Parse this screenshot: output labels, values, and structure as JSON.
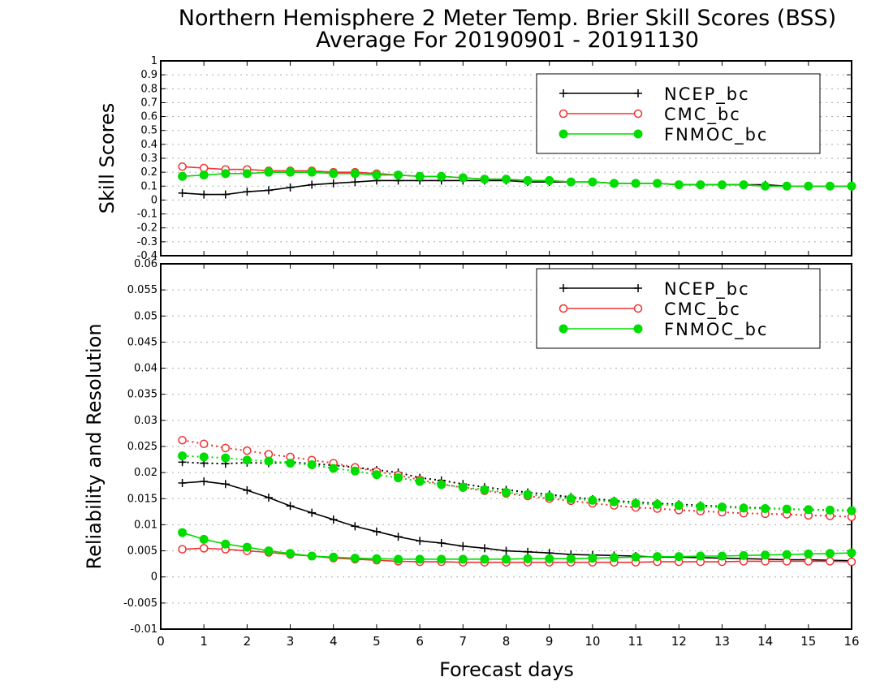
{
  "title_line1": "Northern Hemisphere 2 Meter Temp. Brier Skill Scores (BSS)",
  "title_line2": "Average For 20190901 - 20191130",
  "xlabel": "Forecast days",
  "colors": {
    "NCEP_bc": "#000000",
    "CMC_bc": "#ee3333",
    "FNMOC_bc": "#00dd00"
  },
  "chart_data": [
    {
      "type": "line",
      "ylabel": "Skill Scores",
      "xlim": [
        0,
        16
      ],
      "ylim": [
        -0.4,
        1
      ],
      "xticks": [
        0,
        1,
        2,
        3,
        4,
        5,
        6,
        7,
        8,
        9,
        10,
        11,
        12,
        13,
        14,
        15,
        16
      ],
      "yticks": [
        "-0.4",
        "-0.3",
        "-0.2",
        "-0.1",
        "0",
        "0.1",
        "0.2",
        "0.3",
        "0.4",
        "0.5",
        "0.6",
        "0.7",
        "0.8",
        "0.9",
        "1"
      ],
      "grid": true,
      "legend": "top-right",
      "x": [
        0.5,
        1,
        1.5,
        2,
        2.5,
        3,
        3.5,
        4,
        4.5,
        5,
        5.5,
        6,
        6.5,
        7,
        7.5,
        8,
        8.5,
        9,
        9.5,
        10,
        10.5,
        11,
        11.5,
        12,
        12.5,
        13,
        13.5,
        14,
        14.5,
        15,
        15.5,
        16
      ],
      "series": [
        {
          "name": "NCEP_bc",
          "marker": "plus",
          "style": "solid",
          "values": [
            0.05,
            0.04,
            0.04,
            0.06,
            0.07,
            0.09,
            0.11,
            0.12,
            0.13,
            0.14,
            0.14,
            0.14,
            0.14,
            0.14,
            0.14,
            0.14,
            0.13,
            0.13,
            0.13,
            0.13,
            0.12,
            0.12,
            0.12,
            0.11,
            0.11,
            0.11,
            0.11,
            0.11,
            0.1,
            0.1,
            0.1,
            0.1
          ]
        },
        {
          "name": "CMC_bc",
          "marker": "open-circle",
          "style": "solid",
          "values": [
            0.24,
            0.23,
            0.22,
            0.22,
            0.21,
            0.21,
            0.21,
            0.2,
            0.2,
            0.19,
            0.18,
            0.17,
            0.17,
            0.16,
            0.15,
            0.15,
            0.14,
            0.14,
            0.13,
            0.13,
            0.12,
            0.12,
            0.12,
            0.11,
            0.11,
            0.11,
            0.11,
            0.1,
            0.1,
            0.1,
            0.1,
            0.1
          ]
        },
        {
          "name": "FNMOC_bc",
          "marker": "filled-circle",
          "style": "solid",
          "values": [
            0.17,
            0.18,
            0.19,
            0.19,
            0.2,
            0.2,
            0.2,
            0.19,
            0.19,
            0.18,
            0.18,
            0.17,
            0.17,
            0.16,
            0.15,
            0.15,
            0.14,
            0.14,
            0.13,
            0.13,
            0.12,
            0.12,
            0.12,
            0.11,
            0.11,
            0.11,
            0.11,
            0.1,
            0.1,
            0.1,
            0.1,
            0.1
          ]
        }
      ]
    },
    {
      "type": "line",
      "ylabel": "Reliability and Resolution",
      "xlim": [
        0,
        16
      ],
      "ylim": [
        -0.01,
        0.06
      ],
      "xticks": [
        0,
        1,
        2,
        3,
        4,
        5,
        6,
        7,
        8,
        9,
        10,
        11,
        12,
        13,
        14,
        15,
        16
      ],
      "yticks": [
        "-0.01",
        "-0.005",
        "0",
        "0.005",
        "0.01",
        "0.015",
        "0.02",
        "0.025",
        "0.03",
        "0.035",
        "0.04",
        "0.045",
        "0.05",
        "0.055",
        "0.06"
      ],
      "grid": true,
      "legend": "top-right",
      "x": [
        0.5,
        1,
        1.5,
        2,
        2.5,
        3,
        3.5,
        4,
        4.5,
        5,
        5.5,
        6,
        6.5,
        7,
        7.5,
        8,
        8.5,
        9,
        9.5,
        10,
        10.5,
        11,
        11.5,
        12,
        12.5,
        13,
        13.5,
        14,
        14.5,
        15,
        15.5,
        16
      ],
      "series": [
        {
          "name": "NCEP_bc",
          "marker": "plus",
          "style": "solid",
          "legend": true,
          "values": [
            0.018,
            0.0183,
            0.0178,
            0.0166,
            0.0152,
            0.0136,
            0.0123,
            0.011,
            0.0097,
            0.0087,
            0.0077,
            0.0069,
            0.0065,
            0.0059,
            0.0055,
            0.005,
            0.0048,
            0.0046,
            0.0043,
            0.0042,
            0.0041,
            0.004,
            0.0038,
            0.0038,
            0.0037,
            0.0036,
            0.0035,
            0.0034,
            0.0033,
            0.0033,
            0.0032,
            0.0031
          ]
        },
        {
          "name": "NCEP_bc",
          "marker": "plus",
          "style": "dotted",
          "legend": false,
          "values": [
            0.022,
            0.0218,
            0.0217,
            0.0219,
            0.0218,
            0.022,
            0.0217,
            0.0214,
            0.021,
            0.0205,
            0.02,
            0.019,
            0.0185,
            0.0178,
            0.0172,
            0.0167,
            0.0162,
            0.0158,
            0.0153,
            0.0149,
            0.0146,
            0.0143,
            0.0141,
            0.0139,
            0.0137,
            0.0135,
            0.0133,
            0.0132,
            0.013,
            0.0129,
            0.0128,
            0.0127
          ]
        },
        {
          "name": "CMC_bc",
          "marker": "open-circle",
          "style": "solid",
          "legend": true,
          "values": [
            0.0053,
            0.0055,
            0.0053,
            0.005,
            0.0047,
            0.0043,
            0.004,
            0.0036,
            0.0034,
            0.0032,
            0.003,
            0.0029,
            0.0029,
            0.0028,
            0.0028,
            0.0028,
            0.0028,
            0.0028,
            0.0028,
            0.0028,
            0.0028,
            0.0028,
            0.0029,
            0.0029,
            0.0029,
            0.0029,
            0.003,
            0.003,
            0.003,
            0.003,
            0.003,
            0.0029
          ]
        },
        {
          "name": "CMC_bc",
          "marker": "open-circle",
          "style": "dotted",
          "legend": false,
          "values": [
            0.0262,
            0.0255,
            0.0247,
            0.0242,
            0.0235,
            0.023,
            0.0224,
            0.0218,
            0.021,
            0.0202,
            0.0195,
            0.0186,
            0.0178,
            0.0171,
            0.0165,
            0.016,
            0.0155,
            0.015,
            0.0146,
            0.0141,
            0.0137,
            0.0133,
            0.0131,
            0.0128,
            0.0126,
            0.0124,
            0.0122,
            0.0121,
            0.012,
            0.0118,
            0.0117,
            0.0115
          ]
        },
        {
          "name": "FNMOC_bc",
          "marker": "filled-circle",
          "style": "solid",
          "legend": true,
          "values": [
            0.0085,
            0.0072,
            0.0063,
            0.0057,
            0.005,
            0.0045,
            0.004,
            0.0038,
            0.0036,
            0.0035,
            0.0034,
            0.0034,
            0.0034,
            0.0034,
            0.0034,
            0.0034,
            0.0035,
            0.0035,
            0.0035,
            0.0036,
            0.0037,
            0.0038,
            0.0039,
            0.0039,
            0.004,
            0.004,
            0.0041,
            0.0042,
            0.0043,
            0.0044,
            0.0045,
            0.0046
          ]
        },
        {
          "name": "FNMOC_bc",
          "marker": "filled-circle",
          "style": "dotted",
          "legend": false,
          "values": [
            0.0232,
            0.023,
            0.0228,
            0.0224,
            0.0222,
            0.0218,
            0.0215,
            0.0208,
            0.0203,
            0.0196,
            0.019,
            0.0183,
            0.0177,
            0.0172,
            0.0167,
            0.0162,
            0.0158,
            0.0154,
            0.015,
            0.0147,
            0.0144,
            0.0141,
            0.0139,
            0.0137,
            0.0135,
            0.0134,
            0.0132,
            0.0131,
            0.013,
            0.0129,
            0.0128,
            0.0127
          ]
        }
      ]
    }
  ]
}
